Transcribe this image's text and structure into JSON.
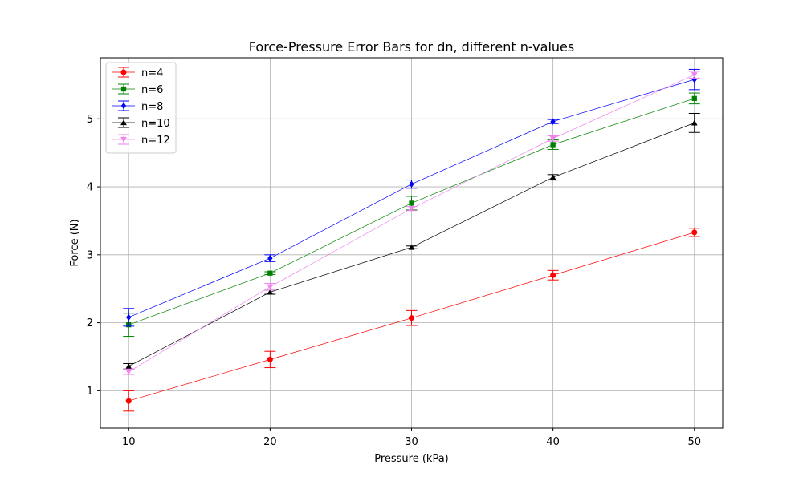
{
  "chart_data": {
    "type": "line",
    "title": "Force-Pressure Error Bars for dn, different n-values",
    "xlabel": "Pressure (kPa)",
    "ylabel": "Force (N)",
    "xlim": [
      8,
      52
    ],
    "ylim": [
      0.45,
      5.9
    ],
    "x_ticks": [
      10,
      20,
      30,
      40,
      50
    ],
    "y_ticks": [
      1,
      2,
      3,
      4,
      5
    ],
    "grid": true,
    "legend_position": "upper-left",
    "x": [
      10,
      20,
      30,
      40,
      50
    ],
    "series": [
      {
        "name": "n=4",
        "color": "#ff0000",
        "marker": "circle",
        "values": [
          0.85,
          1.46,
          2.07,
          2.7,
          3.33
        ],
        "errors": [
          0.15,
          0.12,
          0.11,
          0.07,
          0.06
        ]
      },
      {
        "name": "n=6",
        "color": "#008000",
        "marker": "square",
        "values": [
          1.97,
          2.73,
          3.76,
          4.62,
          5.3
        ],
        "errors": [
          0.17,
          0.02,
          0.1,
          0.07,
          0.08
        ]
      },
      {
        "name": "n=8",
        "color": "#0000ff",
        "marker": "diamond",
        "values": [
          2.08,
          2.95,
          4.04,
          4.96,
          5.58
        ],
        "errors": [
          0.13,
          0.05,
          0.06,
          0.03,
          0.15
        ]
      },
      {
        "name": "n=10",
        "color": "#000000",
        "marker": "triangle-up",
        "values": [
          1.36,
          2.45,
          3.11,
          4.14,
          4.94
        ],
        "errors": [
          0.04,
          0.03,
          0.02,
          0.04,
          0.14
        ]
      },
      {
        "name": "n=12",
        "color": "#ee82ee",
        "marker": "triangle-down",
        "values": [
          1.28,
          2.53,
          3.68,
          4.71,
          5.65
        ],
        "errors": [
          0.04,
          0.05,
          0.03,
          0.04,
          0.05
        ]
      }
    ]
  }
}
